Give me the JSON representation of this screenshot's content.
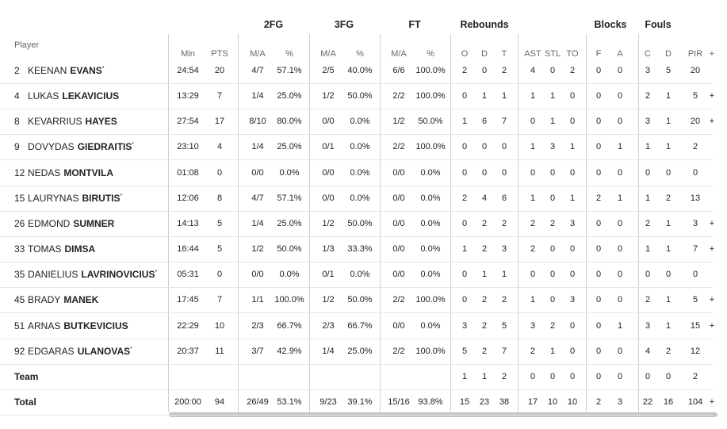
{
  "table": {
    "group_headers": [
      "2FG",
      "3FG",
      "FT",
      "Rebounds",
      "Blocks",
      "Fouls"
    ],
    "player_header": "Player",
    "columns": [
      "Min",
      "PTS",
      "M/A",
      "%",
      "M/A",
      "%",
      "M/A",
      "%",
      "O",
      "D",
      "T",
      "AST",
      "STL",
      "TO",
      "F",
      "A",
      "C",
      "D",
      "PIR",
      "+"
    ],
    "rows": [
      {
        "number": "2",
        "first": "KEENAN",
        "last": "EVANS",
        "mark": "*",
        "stats": [
          "24:54",
          "20",
          "4/7",
          "57.1%",
          "2/5",
          "40.0%",
          "6/6",
          "100.0%",
          "2",
          "0",
          "2",
          "4",
          "0",
          "2",
          "0",
          "0",
          "3",
          "5",
          "20",
          null
        ]
      },
      {
        "number": "4",
        "first": "LUKAS",
        "last": "LEKAVICIUS",
        "stats": [
          "13:29",
          "7",
          "1/4",
          "25.0%",
          "1/2",
          "50.0%",
          "2/2",
          "100.0%",
          "0",
          "1",
          "1",
          "1",
          "1",
          "0",
          "0",
          "0",
          "2",
          "1",
          "5",
          "+"
        ]
      },
      {
        "number": "8",
        "first": "KEVARRIUS",
        "last": "HAYES",
        "stats": [
          "27:54",
          "17",
          "8/10",
          "80.0%",
          "0/0",
          "0.0%",
          "1/2",
          "50.0%",
          "1",
          "6",
          "7",
          "0",
          "1",
          "0",
          "0",
          "0",
          "3",
          "1",
          "20",
          "+"
        ]
      },
      {
        "number": "9",
        "first": "DOVYDAS",
        "last": "GIEDRAITIS",
        "mark": "*",
        "stats": [
          "23:10",
          "4",
          "1/4",
          "25.0%",
          "0/1",
          "0.0%",
          "2/2",
          "100.0%",
          "0",
          "0",
          "0",
          "1",
          "3",
          "1",
          "0",
          "1",
          "1",
          "1",
          "2",
          null
        ]
      },
      {
        "number": "12",
        "first": "NEDAS",
        "last": "MONTVILA",
        "stats": [
          "01:08",
          "0",
          "0/0",
          "0.0%",
          "0/0",
          "0.0%",
          "0/0",
          "0.0%",
          "0",
          "0",
          "0",
          "0",
          "0",
          "0",
          "0",
          "0",
          "0",
          "0",
          "0",
          null
        ]
      },
      {
        "number": "15",
        "first": "LAURYNAS",
        "last": "BIRUTIS",
        "mark": "*",
        "stats": [
          "12:06",
          "8",
          "4/7",
          "57.1%",
          "0/0",
          "0.0%",
          "0/0",
          "0.0%",
          "2",
          "4",
          "6",
          "1",
          "0",
          "1",
          "2",
          "1",
          "1",
          "2",
          "13",
          null
        ]
      },
      {
        "number": "26",
        "first": "EDMOND",
        "last": "SUMNER",
        "stats": [
          "14:13",
          "5",
          "1/4",
          "25.0%",
          "1/2",
          "50.0%",
          "0/0",
          "0.0%",
          "0",
          "2",
          "2",
          "2",
          "2",
          "3",
          "0",
          "0",
          "2",
          "1",
          "3",
          "+"
        ]
      },
      {
        "number": "33",
        "first": "TOMAS",
        "last": "DIMSA",
        "stats": [
          "16:44",
          "5",
          "1/2",
          "50.0%",
          "1/3",
          "33.3%",
          "0/0",
          "0.0%",
          "1",
          "2",
          "3",
          "2",
          "0",
          "0",
          "0",
          "0",
          "1",
          "1",
          "7",
          "+"
        ]
      },
      {
        "number": "35",
        "first": "DANIELIUS",
        "last": "LAVRINOVICIUS",
        "mark": "*",
        "stats": [
          "05:31",
          "0",
          "0/0",
          "0.0%",
          "0/1",
          "0.0%",
          "0/0",
          "0.0%",
          "0",
          "1",
          "1",
          "0",
          "0",
          "0",
          "0",
          "0",
          "0",
          "0",
          "0",
          null
        ]
      },
      {
        "number": "45",
        "first": "BRADY",
        "last": "MANEK",
        "stats": [
          "17:45",
          "7",
          "1/1",
          "100.0%",
          "1/2",
          "50.0%",
          "2/2",
          "100.0%",
          "0",
          "2",
          "2",
          "1",
          "0",
          "3",
          "0",
          "0",
          "2",
          "1",
          "5",
          "+"
        ]
      },
      {
        "number": "51",
        "first": "ARNAS",
        "last": "BUTKEVICIUS",
        "stats": [
          "22:29",
          "10",
          "2/3",
          "66.7%",
          "2/3",
          "66.7%",
          "0/0",
          "0.0%",
          "3",
          "2",
          "5",
          "3",
          "2",
          "0",
          "0",
          "1",
          "3",
          "1",
          "15",
          "+"
        ]
      },
      {
        "number": "92",
        "first": "EDGARAS",
        "last": "ULANOVAS",
        "mark": "*",
        "stats": [
          "20:37",
          "11",
          "3/7",
          "42.9%",
          "1/4",
          "25.0%",
          "2/2",
          "100.0%",
          "5",
          "2",
          "7",
          "2",
          "1",
          "0",
          "0",
          "0",
          "4",
          "2",
          "12",
          null
        ]
      },
      {
        "label": "Team",
        "stats": [
          null,
          null,
          null,
          null,
          null,
          null,
          null,
          null,
          "1",
          "1",
          "2",
          "0",
          "0",
          "0",
          "0",
          "0",
          "0",
          "0",
          "2",
          null
        ]
      },
      {
        "label": "Total",
        "stats": [
          "200:00",
          "94",
          "26/49",
          "53.1%",
          "9/23",
          "39.1%",
          "15/16",
          "93.8%",
          "15",
          "23",
          "38",
          "17",
          "10",
          "10",
          "2",
          "3",
          "22",
          "16",
          "104",
          "+"
        ]
      }
    ]
  }
}
